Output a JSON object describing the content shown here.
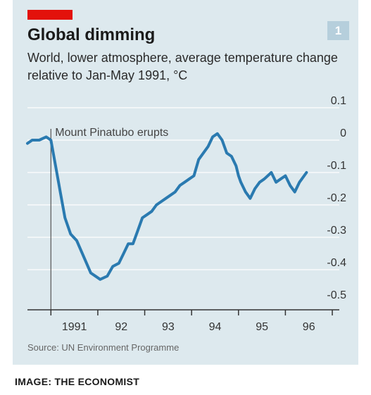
{
  "badge": "1",
  "colors": {
    "line": "#2a7ab0",
    "background": "#dde9ee",
    "accent": "#e3120b"
  },
  "source": "Source: UN Environment Programme",
  "credit": "IMAGE: THE ECONOMIST",
  "chart_data": {
    "type": "line",
    "title": "Global dimming",
    "subtitle": "World, lower atmosphere, average temperature change relative to Jan-May 1991, °C",
    "xlabel": "",
    "ylabel": "",
    "xlim": [
      1990.5,
      1997.3
    ],
    "ylim": [
      -0.5,
      0.1
    ],
    "y_ticks": [
      0.1,
      0,
      -0.1,
      -0.2,
      -0.3,
      -0.4,
      -0.5
    ],
    "y_tick_labels": [
      "0.1",
      "0",
      "-0.1",
      "-0.2",
      "-0.3",
      "-0.4",
      "-0.5"
    ],
    "x_ticks": [
      1991,
      1992,
      1993,
      1994,
      1995,
      1996
    ],
    "x_tick_labels": [
      "1991",
      "92",
      "93",
      "94",
      "95",
      "96"
    ],
    "grid": "horizontal",
    "annotation": {
      "x": 1991.0,
      "label": "Mount Pinatubo erupts"
    },
    "series": [
      {
        "x": [
          1990.5,
          1990.6,
          1990.75,
          1990.9,
          1991.0,
          1991.1,
          1991.2,
          1991.3,
          1991.42,
          1991.55,
          1991.7,
          1991.85,
          1991.95,
          1992.05,
          1992.2,
          1992.32,
          1992.45,
          1992.55,
          1992.65,
          1992.75,
          1992.85,
          1992.95,
          1993.05,
          1993.15,
          1993.25,
          1993.35,
          1993.45,
          1993.55,
          1993.65,
          1993.75,
          1993.85,
          1993.95,
          1994.05,
          1994.15,
          1994.25,
          1994.35,
          1994.45,
          1994.55,
          1994.65,
          1994.75,
          1994.85,
          1994.95,
          1995.0,
          1995.05,
          1995.15,
          1995.25,
          1995.35,
          1995.45,
          1995.55,
          1995.7,
          1995.8,
          1995.9,
          1996.0,
          1996.1,
          1996.2,
          1996.3,
          1996.45
        ],
        "values": [
          -0.01,
          0.0,
          0.0,
          0.01,
          0.0,
          -0.08,
          -0.16,
          -0.24,
          -0.29,
          -0.31,
          -0.36,
          -0.41,
          -0.42,
          -0.43,
          -0.42,
          -0.39,
          -0.38,
          -0.35,
          -0.32,
          -0.32,
          -0.28,
          -0.24,
          -0.23,
          -0.22,
          -0.2,
          -0.19,
          -0.18,
          -0.17,
          -0.16,
          -0.14,
          -0.13,
          -0.12,
          -0.11,
          -0.06,
          -0.04,
          -0.02,
          0.01,
          0.02,
          0.0,
          -0.04,
          -0.05,
          -0.08,
          -0.11,
          -0.13,
          -0.16,
          -0.18,
          -0.15,
          -0.13,
          -0.12,
          -0.1,
          -0.13,
          -0.12,
          -0.11,
          -0.14,
          -0.16,
          -0.13,
          -0.1
        ]
      }
    ]
  }
}
